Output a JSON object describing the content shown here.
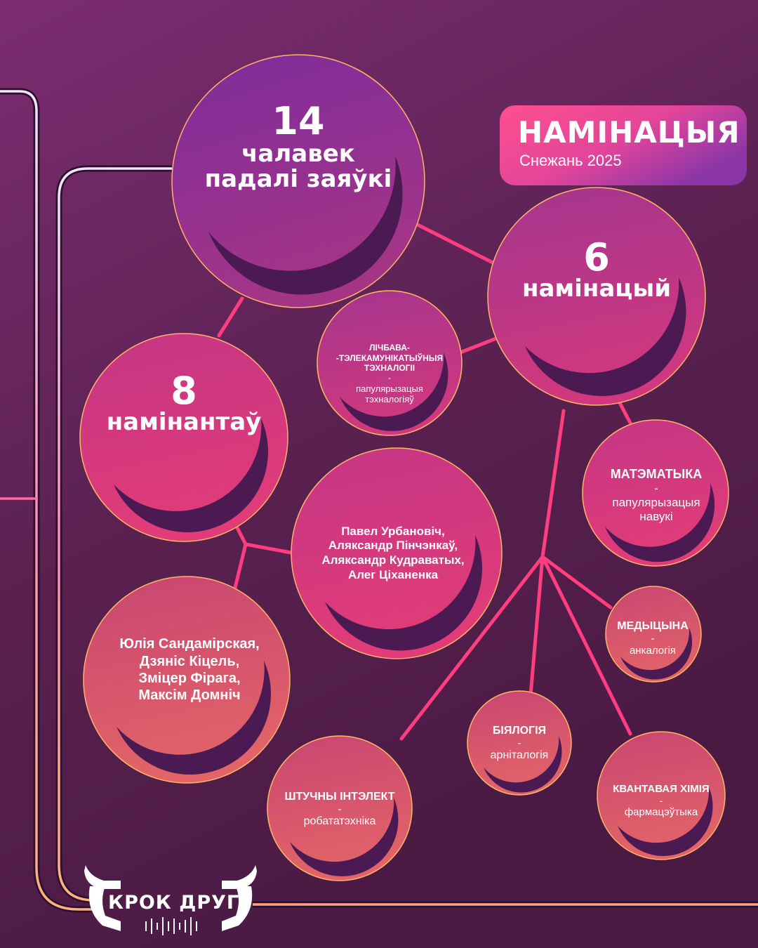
{
  "badge": {
    "title": "НАМІНАЦЫЯ",
    "subtitle": "Снежань 2025"
  },
  "nodes": {
    "applicants": {
      "number": "14",
      "line1": "чалавек",
      "line2": "падалі заяўкі"
    },
    "nominations": {
      "number": "6",
      "line1": "намінацый"
    },
    "nominees": {
      "number": "8",
      "line1": "намінантаў"
    },
    "ict": {
      "line1": "ЛІЧБАВА-",
      "line2": "-ТЭЛЕКАМУНІКАТЫЎНЫЯ",
      "line3": "ТЭХНАЛОГІІ",
      "dash": "-",
      "sub": "папулярызацыя тэхналогіяў"
    },
    "math": {
      "title": "МАТЭМАТЫКА",
      "dash": "-",
      "sub": "папулярызацыя навукі"
    },
    "medicine": {
      "title": "МЕДЫЦЫНА",
      "dash": "-",
      "sub": "анкалогія"
    },
    "biology": {
      "title": "БІЯЛОГІЯ",
      "dash": "-",
      "sub": "арніталогія"
    },
    "ai": {
      "title": "ШТУЧНЫ ІНТЭЛЕКТ",
      "dash": "-",
      "sub": "робататэхніка"
    },
    "quantum": {
      "title": "КВАНТАВАЯ ХІМІЯ",
      "dash": "-",
      "sub": "фармацэўтыка"
    },
    "group1": {
      "names": [
        "Павел Урбановіч,",
        "Аляксандр Пінчэнкаў,",
        "Аляксандр Кудраватых,",
        "Алег Ціханенка"
      ]
    },
    "group2": {
      "names": [
        "Юлія Сандамірская,",
        "Дзяніс Кіцель,",
        "Зміцер Фірага,",
        "Максім Домніч"
      ]
    }
  },
  "logo": {
    "text": "КРОК ДРУГІ"
  },
  "colors": {
    "bg_top": "#7a2c74",
    "bg_bottom": "#4e1d45",
    "node_purple": "#8a2e95",
    "node_pink": "#d13781",
    "node_coral": "#d9556e",
    "connector": "#ff3d7f",
    "badge_left": "#ff4f8f",
    "badge_right": "#8a35a8"
  }
}
